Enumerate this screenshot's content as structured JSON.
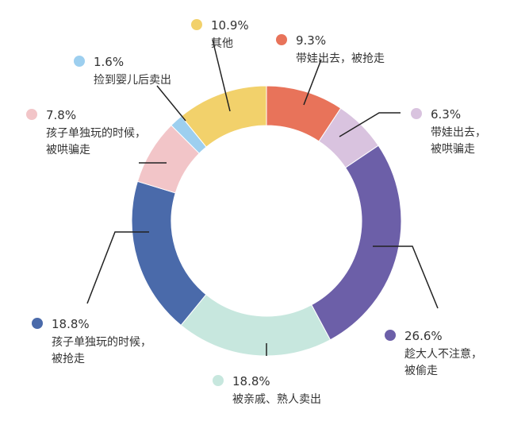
{
  "chart_data": {
    "type": "pie",
    "donut": true,
    "segments": [
      {
        "value": 9.3,
        "percent": "9.3%",
        "label": [
          "带娃出去，被抢走"
        ],
        "color": "#E8735A"
      },
      {
        "value": 6.3,
        "percent": "6.3%",
        "label": [
          "带娃出去，",
          "被哄骗走"
        ],
        "color": "#D9C3DF"
      },
      {
        "value": 26.6,
        "percent": "26.6%",
        "label": [
          "趁大人不注意，",
          "被偷走"
        ],
        "color": "#6C5FA8"
      },
      {
        "value": 18.8,
        "percent": "18.8%",
        "label": [
          "被亲戚、熟人卖出"
        ],
        "color": "#C7E7DE"
      },
      {
        "value": 18.8,
        "percent": "18.8%",
        "label": [
          "孩子单独玩的时候，",
          "被抢走"
        ],
        "color": "#4A6AAA"
      },
      {
        "value": 7.8,
        "percent": "7.8%",
        "label": [
          "孩子单独玩的时候，",
          "被哄骗走"
        ],
        "color": "#F2C5C8"
      },
      {
        "value": 1.6,
        "percent": "1.6%",
        "label": [
          "捡到婴儿后卖出"
        ],
        "color": "#9DCFEF"
      },
      {
        "value": 10.9,
        "percent": "10.9%",
        "label": [
          "其他"
        ],
        "color": "#F2D16B"
      }
    ]
  }
}
